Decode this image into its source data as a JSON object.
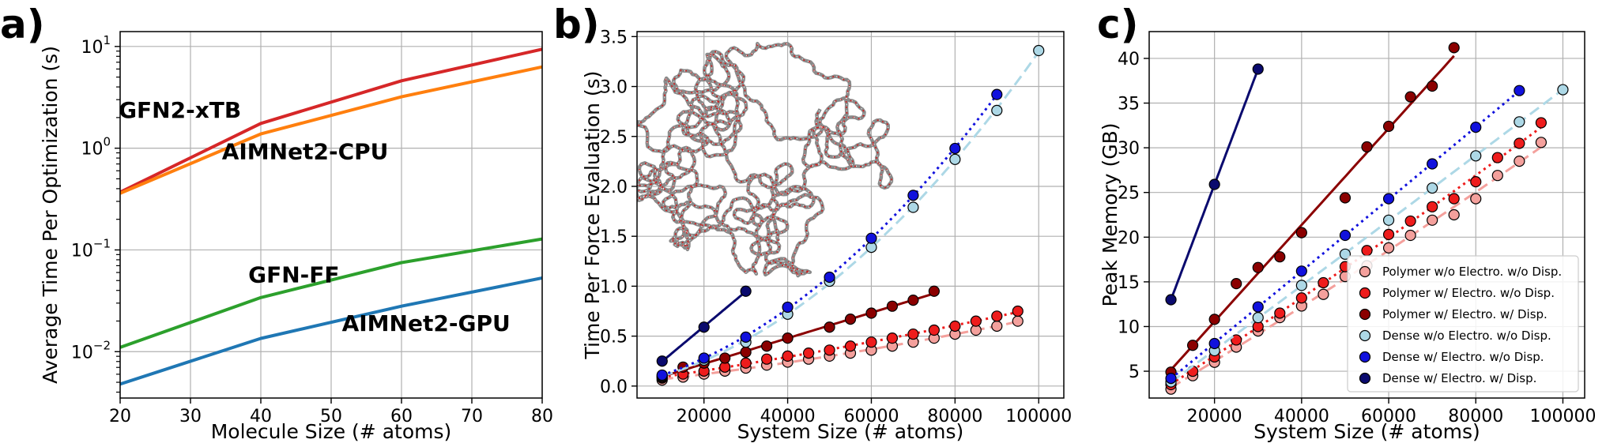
{
  "chart_data": [
    {
      "panel": "a)",
      "type": "line",
      "xlabel": "Molecule Size (# atoms)",
      "ylabel": "Average Time Per Optimization (s)",
      "xlim": [
        20,
        80
      ],
      "ylim": [
        0.0035,
        14
      ],
      "yscale": "log",
      "grid": true,
      "xticks": [
        20,
        30,
        40,
        50,
        60,
        70,
        80
      ],
      "yticks": [
        {
          "value": 0.01,
          "base": "10",
          "exp": "−2"
        },
        {
          "value": 0.1,
          "base": "10",
          "exp": "−1"
        },
        {
          "value": 1,
          "base": "10",
          "exp": "0"
        },
        {
          "value": 10,
          "base": "10",
          "exp": "1"
        }
      ],
      "series": [
        {
          "name": "GFN2-xTB",
          "color": "#d62728",
          "x": [
            20,
            40,
            60,
            80
          ],
          "y": [
            0.37,
            1.75,
            4.6,
            9.4
          ],
          "label_at": [
            28.5,
            2.0
          ]
        },
        {
          "name": "AIMNet2-CPU",
          "color": "#ff7f0e",
          "x": [
            20,
            40,
            60,
            80
          ],
          "y": [
            0.36,
            1.38,
            3.2,
            6.3
          ],
          "label_at": [
            46.3,
            0.78
          ]
        },
        {
          "name": "GFN-FF",
          "color": "#2ca02c",
          "x": [
            20,
            40,
            60,
            80
          ],
          "y": [
            0.011,
            0.034,
            0.075,
            0.128
          ],
          "label_at": [
            44.7,
            0.048
          ]
        },
        {
          "name": "AIMNet2-GPU",
          "color": "#1f77b4",
          "x": [
            20,
            40,
            60,
            80
          ],
          "y": [
            0.0048,
            0.0135,
            0.028,
            0.053
          ],
          "label_at": [
            63.5,
            0.016
          ]
        }
      ]
    },
    {
      "panel": "b)",
      "type": "scatter",
      "xlabel": "System Size (# atoms)",
      "ylabel": "Time Per Force Evaluation (s)",
      "xlim": [
        4000,
        106000
      ],
      "ylim": [
        -0.12,
        3.55
      ],
      "grid": true,
      "xticks": [
        20000,
        40000,
        60000,
        80000,
        100000
      ],
      "yticks": [
        0.0,
        0.5,
        1.0,
        1.5,
        2.0,
        2.5,
        3.0,
        3.5
      ],
      "inset": "polymer chain rendering",
      "series": [
        {
          "color": "#f4a09c",
          "fit": "dashed",
          "x": [
            10000,
            15000,
            20000,
            25000,
            30000,
            35000,
            40000,
            45000,
            50000,
            55000,
            60000,
            65000,
            70000,
            75000,
            80000,
            85000,
            90000,
            95000
          ],
          "y": [
            0.06,
            0.09,
            0.12,
            0.15,
            0.18,
            0.21,
            0.24,
            0.27,
            0.3,
            0.33,
            0.36,
            0.4,
            0.44,
            0.48,
            0.52,
            0.56,
            0.6,
            0.65
          ]
        },
        {
          "color": "#ee1c1c",
          "fit": "dotted",
          "x": [
            10000,
            15000,
            20000,
            25000,
            30000,
            35000,
            40000,
            45000,
            50000,
            55000,
            60000,
            65000,
            70000,
            75000,
            80000,
            85000,
            90000,
            95000
          ],
          "y": [
            0.08,
            0.12,
            0.15,
            0.19,
            0.23,
            0.27,
            0.3,
            0.33,
            0.36,
            0.4,
            0.44,
            0.48,
            0.52,
            0.56,
            0.6,
            0.65,
            0.7,
            0.75
          ]
        },
        {
          "color": "#8b0000",
          "fit": "solid",
          "x": [
            10000,
            15000,
            20000,
            25000,
            30000,
            35000,
            40000,
            50000,
            55000,
            60000,
            65000,
            70000,
            75000
          ],
          "y": [
            0.09,
            0.19,
            0.23,
            0.28,
            0.34,
            0.4,
            0.48,
            0.59,
            0.67,
            0.73,
            0.8,
            0.86,
            0.95
          ]
        },
        {
          "color": "#add8e6",
          "fit": "dashed",
          "x": [
            10000,
            20000,
            30000,
            40000,
            50000,
            60000,
            70000,
            80000,
            90000,
            100000
          ],
          "y": [
            0.1,
            0.26,
            0.44,
            0.72,
            1.05,
            1.39,
            1.79,
            2.27,
            2.76,
            3.36
          ]
        },
        {
          "color": "#1111dd",
          "fit": "dotted",
          "x": [
            10000,
            20000,
            30000,
            40000,
            50000,
            60000,
            70000,
            80000,
            90000
          ],
          "y": [
            0.11,
            0.28,
            0.49,
            0.79,
            1.09,
            1.48,
            1.91,
            2.38,
            2.92
          ]
        },
        {
          "color": "#0a0a6e",
          "fit": "solid",
          "x": [
            10000,
            20000,
            30000
          ],
          "y": [
            0.25,
            0.59,
            0.95
          ]
        }
      ]
    },
    {
      "panel": "c)",
      "type": "scatter",
      "xlabel": "System Size (# atoms)",
      "ylabel": "Peak Memory (GB)",
      "xlim": [
        5000,
        105000
      ],
      "ylim": [
        2,
        43
      ],
      "grid": true,
      "legend": "bottom-right",
      "xticks": [
        20000,
        40000,
        60000,
        80000,
        100000
      ],
      "yticks": [
        5,
        10,
        15,
        20,
        25,
        30,
        35,
        40
      ],
      "series": [
        {
          "name": "Polymer w/o Electro. w/o Disp.",
          "color": "#f4a09c",
          "fit": "dashed",
          "x": [
            10000,
            15000,
            20000,
            25000,
            30000,
            35000,
            40000,
            45000,
            50000,
            55000,
            60000,
            65000,
            70000,
            75000,
            80000,
            85000,
            90000,
            95000
          ],
          "y": [
            3.0,
            4.5,
            6.0,
            7.7,
            9.5,
            11.0,
            12.3,
            13.6,
            15.6,
            16.8,
            18.8,
            20.2,
            21.9,
            22.5,
            24.3,
            26.9,
            28.5,
            30.6
          ]
        },
        {
          "name": "Polymer w/ Electro. w/o Disp.",
          "color": "#ee1c1c",
          "fit": "dotted",
          "x": [
            10000,
            15000,
            20000,
            25000,
            30000,
            35000,
            40000,
            45000,
            50000,
            55000,
            60000,
            65000,
            70000,
            75000,
            80000,
            85000,
            90000,
            95000
          ],
          "y": [
            3.5,
            5.0,
            6.6,
            8.5,
            10.0,
            11.5,
            13.2,
            14.9,
            16.7,
            18.5,
            20.3,
            21.8,
            23.4,
            24.3,
            26.2,
            28.9,
            30.5,
            32.8
          ]
        },
        {
          "name": "Polymer w/ Electro. w/ Disp.",
          "color": "#8b0000",
          "fit": "solid",
          "x": [
            10000,
            15000,
            20000,
            25000,
            30000,
            35000,
            40000,
            50000,
            55000,
            60000,
            65000,
            70000,
            75000
          ],
          "y": [
            4.9,
            7.9,
            10.8,
            14.8,
            16.6,
            17.8,
            20.5,
            24.4,
            30.1,
            32.4,
            35.7,
            36.9,
            41.2
          ]
        },
        {
          "name": "Dense w/o Electro. w/o Disp.",
          "color": "#add8e6",
          "fit": "dashed",
          "x": [
            10000,
            20000,
            30000,
            40000,
            50000,
            60000,
            70000,
            80000,
            90000,
            100000
          ],
          "y": [
            3.8,
            7.3,
            11.0,
            14.6,
            18.1,
            21.9,
            25.5,
            29.1,
            32.9,
            36.5
          ]
        },
        {
          "name": "Dense w/ Electro. w/o Disp.",
          "color": "#1111dd",
          "fit": "dotted",
          "x": [
            10000,
            20000,
            30000,
            40000,
            50000,
            60000,
            70000,
            80000,
            90000
          ],
          "y": [
            4.2,
            8.1,
            12.2,
            16.2,
            20.2,
            24.3,
            28.2,
            32.3,
            36.4
          ]
        },
        {
          "name": "Dense w/ Electro. w/ Disp.",
          "color": "#0a0a6e",
          "fit": "solid",
          "x": [
            10000,
            20000,
            30000
          ],
          "y": [
            13.0,
            25.9,
            38.8
          ]
        }
      ]
    }
  ]
}
